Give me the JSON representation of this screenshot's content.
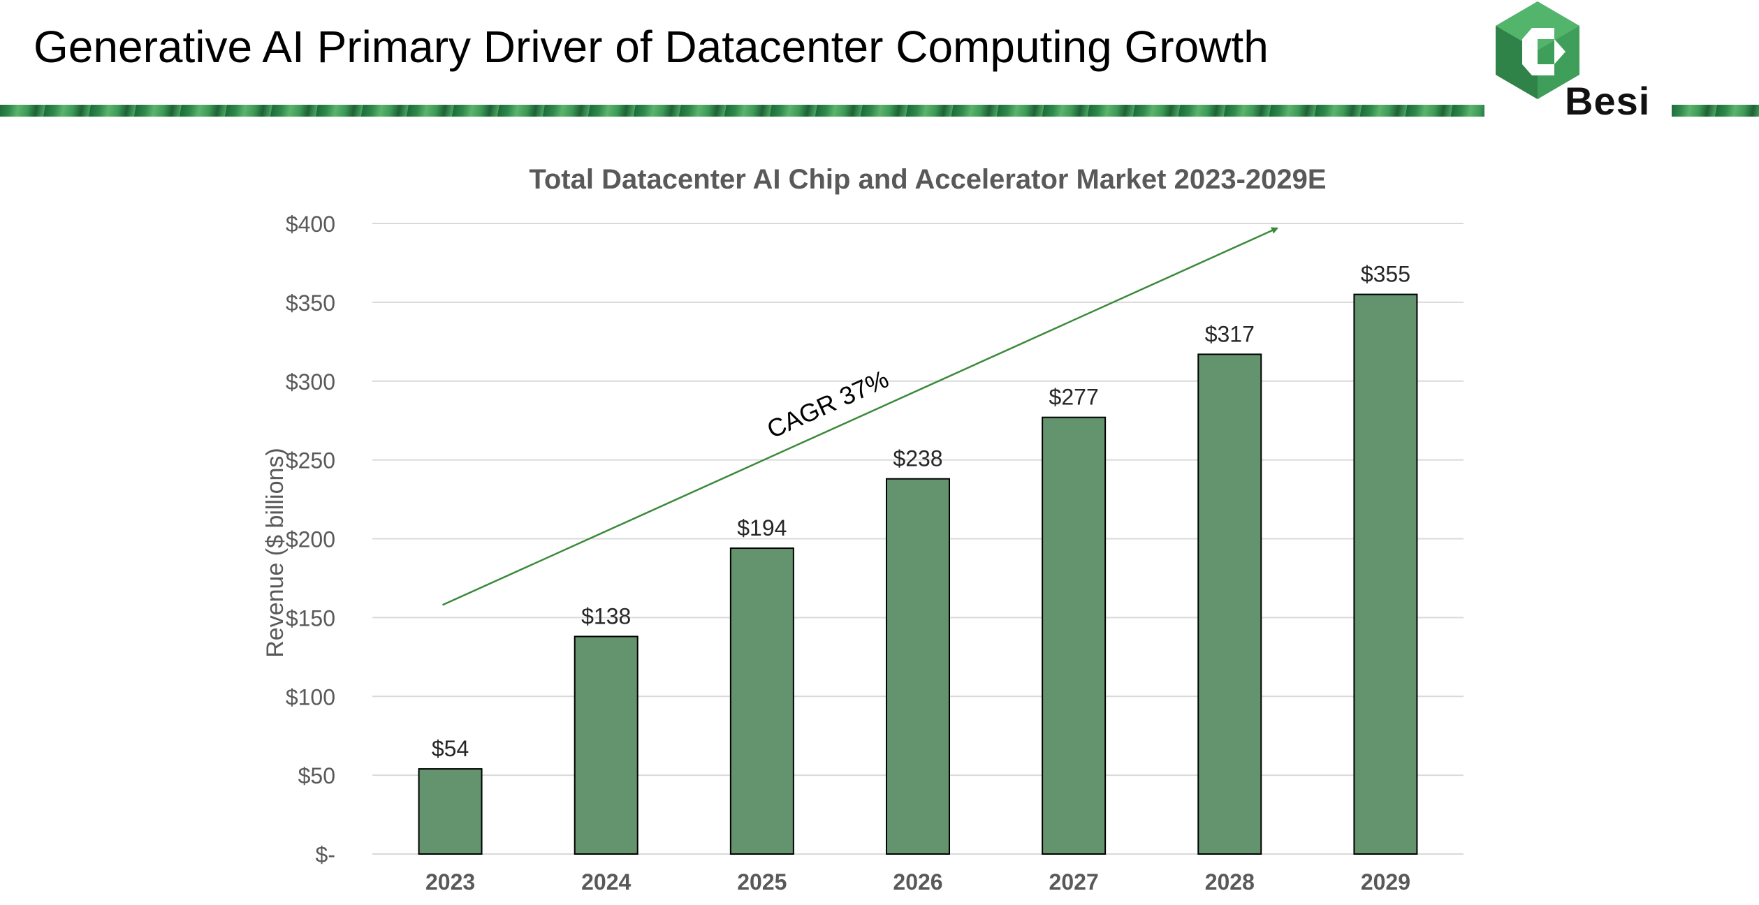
{
  "slide": {
    "title": "Generative AI Primary Driver of Datacenter Computing Growth",
    "logo_text": "Besi"
  },
  "colors": {
    "bar": "#64946d",
    "bar_border": "#000000",
    "arrow": "#3a8a3a",
    "grid": "#d9d9d9",
    "text": "#595959"
  },
  "chart_data": {
    "type": "bar",
    "title": "Total Datacenter AI Chip and Accelerator Market 2023-2029E",
    "ylabel": "Revenue ($ billions)",
    "xlabel": "",
    "categories": [
      "2023",
      "2024",
      "2025",
      "2026",
      "2027",
      "2028",
      "2029"
    ],
    "values": [
      54,
      138,
      194,
      238,
      277,
      317,
      355
    ],
    "data_labels": [
      "$54",
      "$138",
      "$194",
      "$238",
      "$277",
      "$317",
      "$355"
    ],
    "ylim": [
      0,
      400
    ],
    "yticks": [
      0,
      50,
      100,
      150,
      200,
      250,
      300,
      350,
      400
    ],
    "ytick_labels": [
      "$-",
      "$50",
      "$100",
      "$150",
      "$200",
      "$250",
      "$300",
      "$350",
      "$400"
    ],
    "grid": true,
    "legend": "none",
    "annotation": {
      "text": "CAGR 37%",
      "arrow_from": {
        "x": "2023",
        "y": 158
      },
      "arrow_to": {
        "x": "2028",
        "y": 397
      }
    }
  }
}
